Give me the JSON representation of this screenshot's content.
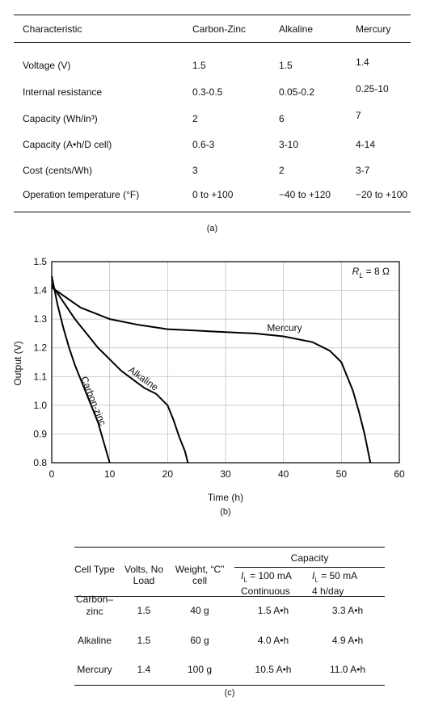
{
  "table_a": {
    "header": [
      "Characteristic",
      "Carbon-Zinc",
      "Alkaline",
      "Mercury"
    ],
    "rows": [
      [
        "Voltage (V)",
        "1.5",
        "1.5",
        "1.4"
      ],
      [
        "Internal resistance",
        "0.3-0.5",
        "0.05-0.2",
        "0.25-10"
      ],
      [
        "Capacity (Wh/in³)",
        "2",
        "6",
        "7"
      ],
      [
        "Capacity (A•h/D cell)",
        "0.6-3",
        "3-10",
        "4-14"
      ],
      [
        "Cost (cents/Wh)",
        "3",
        "2",
        "3-7"
      ],
      [
        "Operation temperature (°F)",
        "0 to +100",
        "−40 to +120",
        "−20 to +100"
      ]
    ],
    "caption": "(a)"
  },
  "chart_data": {
    "type": "line",
    "x_label": "Time (h)",
    "y_label": "Output (V)",
    "caption": "(b)",
    "annotation": {
      "symbol": "R",
      "sub": "L",
      "text": " = 8 Ω"
    },
    "xlim": [
      0,
      60
    ],
    "ylim": [
      0.8,
      1.5
    ],
    "xticks": [
      0,
      10,
      20,
      30,
      40,
      50,
      60
    ],
    "yticks": [
      0.8,
      0.9,
      {
        "value": 1,
        "label": "1.0"
      },
      1.1,
      1.2,
      1.3,
      1.4,
      1.5
    ],
    "grid": true,
    "series": [
      {
        "name": "Carbon-zinc",
        "color": "#000000",
        "x": [
          0,
          1,
          2,
          3,
          4,
          5,
          6,
          7,
          8,
          9,
          10
        ],
        "values": [
          1.45,
          1.35,
          1.27,
          1.2,
          1.14,
          1.09,
          1.04,
          0.99,
          0.94,
          0.87,
          0.8
        ]
      },
      {
        "name": "Alkaline",
        "color": "#000000",
        "x": [
          0,
          2,
          4,
          6,
          8,
          10,
          12,
          14,
          16,
          18,
          20,
          21,
          22,
          23,
          23.5
        ],
        "values": [
          1.42,
          1.36,
          1.3,
          1.25,
          1.2,
          1.16,
          1.12,
          1.09,
          1.06,
          1.04,
          1.0,
          0.95,
          0.89,
          0.84,
          0.8
        ]
      },
      {
        "name": "Mercury",
        "color": "#000000",
        "x": [
          0,
          5,
          10,
          15,
          20,
          25,
          30,
          35,
          40,
          45,
          48,
          50,
          52,
          53,
          54,
          55
        ],
        "values": [
          1.41,
          1.34,
          1.3,
          1.28,
          1.265,
          1.26,
          1.255,
          1.25,
          1.24,
          1.22,
          1.19,
          1.15,
          1.05,
          0.98,
          0.9,
          0.8
        ]
      }
    ]
  },
  "table_c": {
    "header": [
      "Cell Type",
      "Volts, No Load",
      "Weight, “C” cell",
      "Capacity"
    ],
    "subheader": [
      {
        "symbol": "I",
        "sub": "L",
        "text": " = 100 mA",
        "note": "Continuous"
      },
      {
        "symbol": "I",
        "sub": "L",
        "text": " = 50 mA",
        "note": "4 h/day"
      }
    ],
    "rows": [
      [
        "Carbon–zinc",
        "1.5",
        "40 g",
        "1.5 A•h",
        "3.3 A•h"
      ],
      [
        "Alkaline",
        "1.5",
        "60 g",
        "4.0 A•h",
        "4.9 A•h"
      ],
      [
        "Mercury",
        "1.4",
        "100 g",
        "10.5 A•h",
        "11.0 A•h"
      ]
    ],
    "caption": "(c)"
  }
}
